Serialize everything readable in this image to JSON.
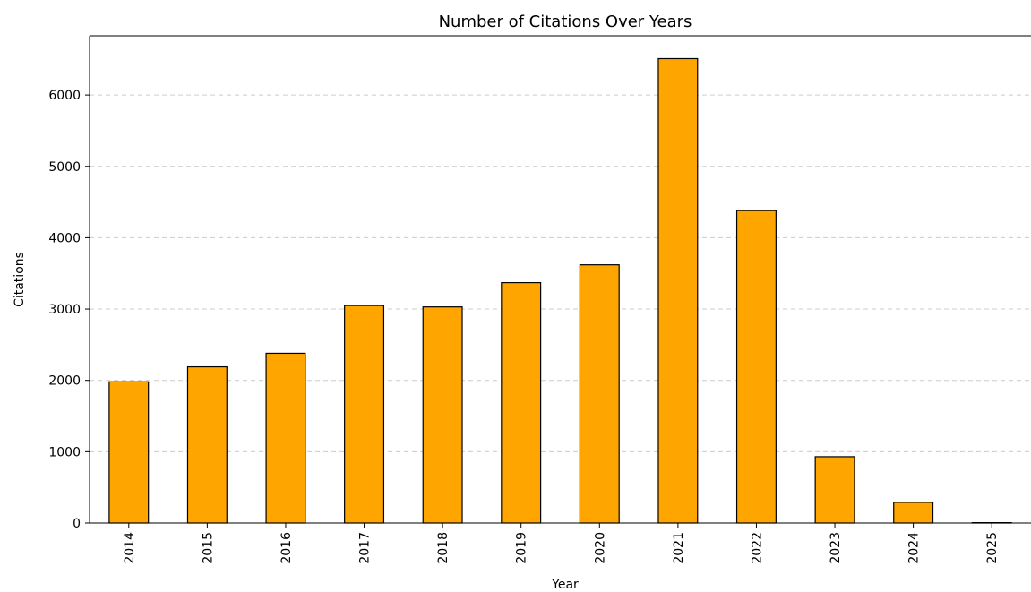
{
  "chart_data": {
    "type": "bar",
    "title": "Number of Citations Over Years",
    "xlabel": "Year",
    "ylabel": "Citations",
    "categories": [
      "2014",
      "2015",
      "2016",
      "2017",
      "2018",
      "2019",
      "2020",
      "2021",
      "2022",
      "2023",
      "2024",
      "2025"
    ],
    "values": [
      1980,
      2190,
      2380,
      3050,
      3030,
      3370,
      3620,
      6510,
      4380,
      930,
      290,
      5
    ],
    "ylim": [
      0,
      6830
    ],
    "yticks": [
      0,
      1000,
      2000,
      3000,
      4000,
      5000,
      6000
    ],
    "grid": "horizontal dashed",
    "bar_color": "#ffa500",
    "edge_color": "#000000",
    "grid_color": "#cccccc"
  }
}
